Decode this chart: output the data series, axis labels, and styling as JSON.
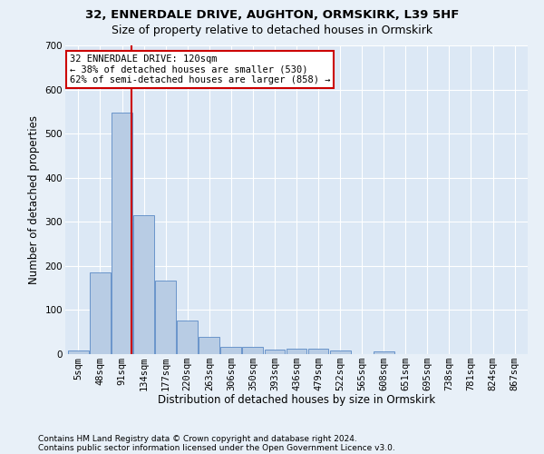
{
  "title1": "32, ENNERDALE DRIVE, AUGHTON, ORMSKIRK, L39 5HF",
  "title2": "Size of property relative to detached houses in Ormskirk",
  "xlabel": "Distribution of detached houses by size in Ormskirk",
  "ylabel": "Number of detached properties",
  "footnote1": "Contains HM Land Registry data © Crown copyright and database right 2024.",
  "footnote2": "Contains public sector information licensed under the Open Government Licence v3.0.",
  "bar_labels": [
    "5sqm",
    "48sqm",
    "91sqm",
    "134sqm",
    "177sqm",
    "220sqm",
    "263sqm",
    "306sqm",
    "350sqm",
    "393sqm",
    "436sqm",
    "479sqm",
    "522sqm",
    "565sqm",
    "608sqm",
    "651sqm",
    "695sqm",
    "738sqm",
    "781sqm",
    "824sqm",
    "867sqm"
  ],
  "bar_values": [
    8,
    185,
    547,
    315,
    167,
    76,
    40,
    17,
    17,
    11,
    12,
    12,
    8,
    0,
    6,
    0,
    0,
    0,
    0,
    0,
    0
  ],
  "bar_color": "#b8cce4",
  "bar_edgecolor": "#5b8ac5",
  "vline_x": 2.45,
  "vline_color": "#cc0000",
  "ann_line1": "32 ENNERDALE DRIVE: 120sqm",
  "ann_line2": "← 38% of detached houses are smaller (530)",
  "ann_line3": "62% of semi-detached houses are larger (858) →",
  "ann_edgecolor": "#cc0000",
  "ylim": [
    0,
    700
  ],
  "yticks": [
    0,
    100,
    200,
    300,
    400,
    500,
    600,
    700
  ],
  "fig_bg": "#e8f0f8",
  "axes_bg": "#dce8f5",
  "grid_color": "#ffffff",
  "title1_fontsize": 9.5,
  "title2_fontsize": 9.0,
  "ylabel_fontsize": 8.5,
  "xlabel_fontsize": 8.5,
  "tick_fontsize": 7.5,
  "footnote_fontsize": 6.5
}
